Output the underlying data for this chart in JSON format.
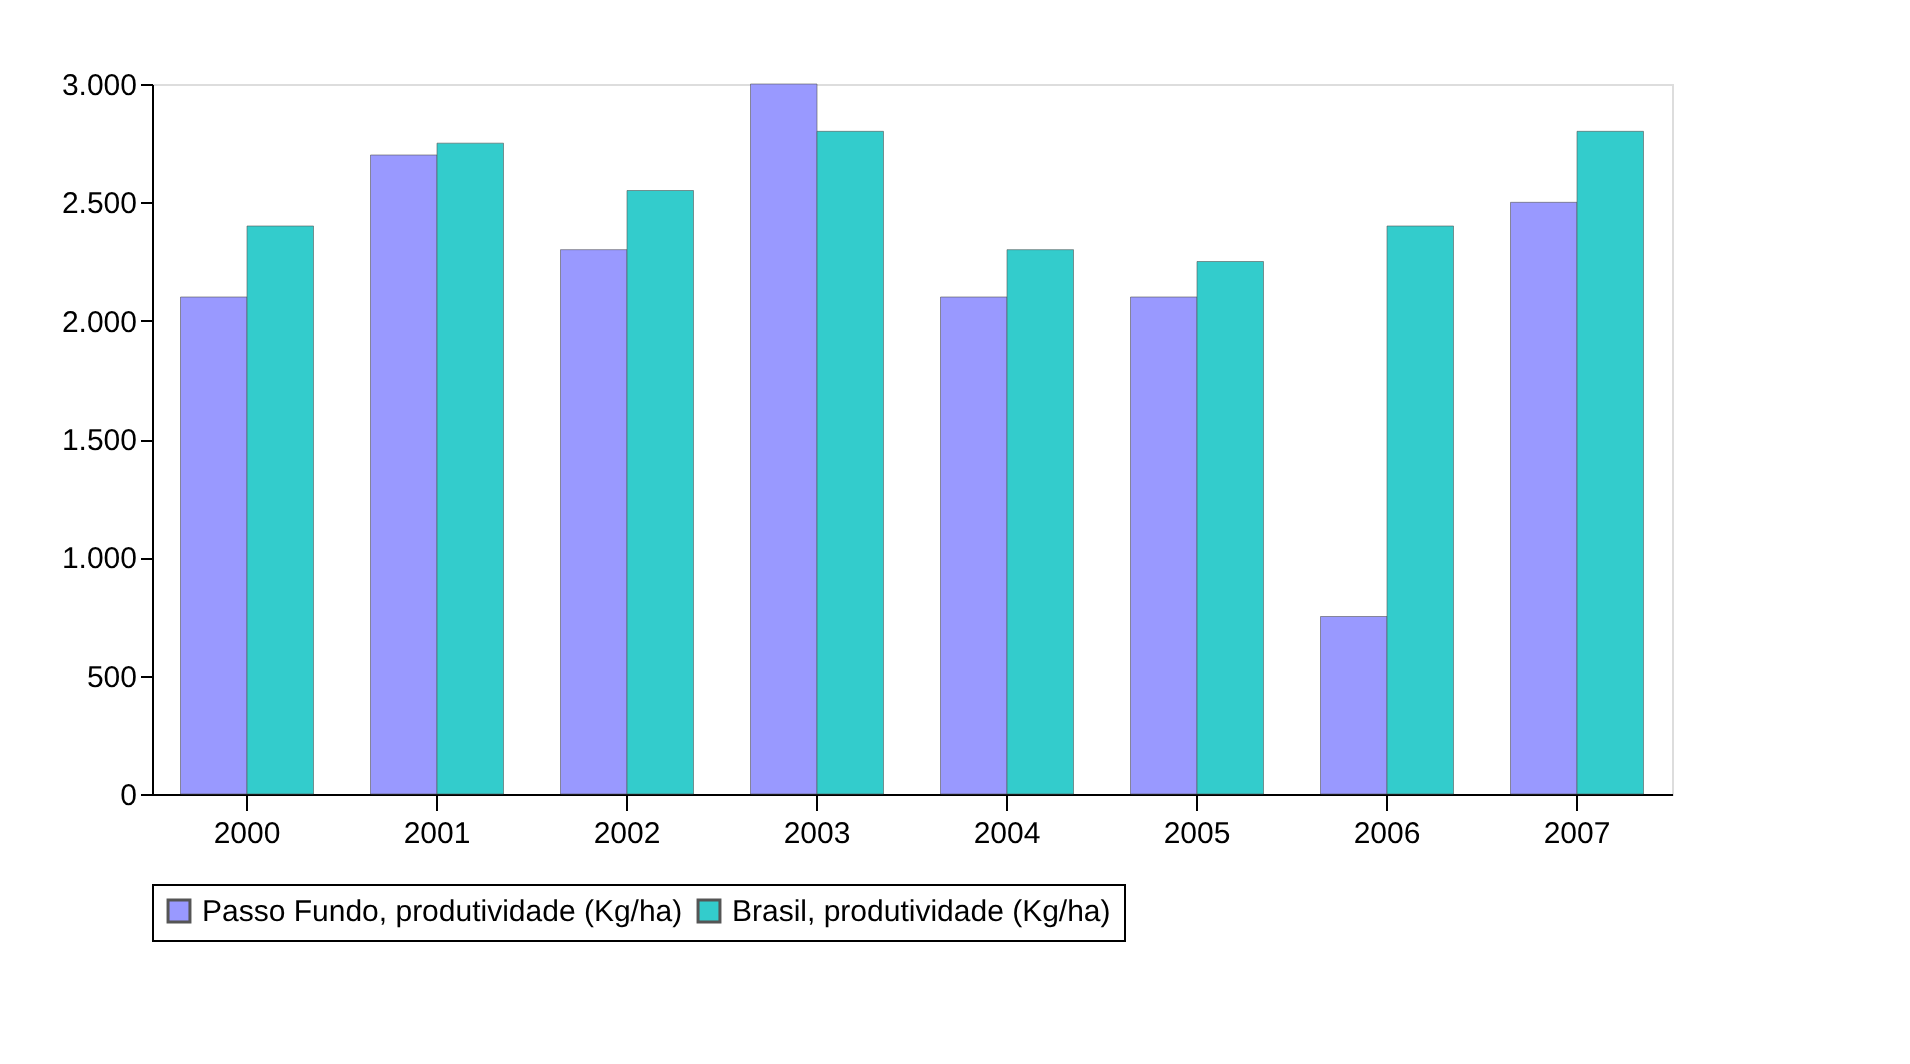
{
  "chart_data": {
    "type": "bar",
    "categories": [
      "2000",
      "2001",
      "2002",
      "2003",
      "2004",
      "2005",
      "2006",
      "2007"
    ],
    "series": [
      {
        "name": "Passo Fundo, produtividade (Kg/ha)",
        "color": "#9999ff",
        "values": [
          2100,
          2700,
          2300,
          3000,
          2100,
          2100,
          750,
          2500
        ]
      },
      {
        "name": "Brasil, produtividade (Kg/ha)",
        "color": "#33cccc",
        "values": [
          2400,
          2750,
          2550,
          2800,
          2300,
          2250,
          2400,
          2800
        ]
      }
    ],
    "ylim": [
      0,
      3000
    ],
    "yticks": [
      {
        "value": 0,
        "label": "0"
      },
      {
        "value": 500,
        "label": "500"
      },
      {
        "value": 1000,
        "label": "1.000"
      },
      {
        "value": 1500,
        "label": "1.500"
      },
      {
        "value": 2000,
        "label": "2.000"
      },
      {
        "value": 2500,
        "label": "2.500"
      },
      {
        "value": 3000,
        "label": "3.000"
      }
    ],
    "grid": false,
    "legend": "bottom"
  }
}
